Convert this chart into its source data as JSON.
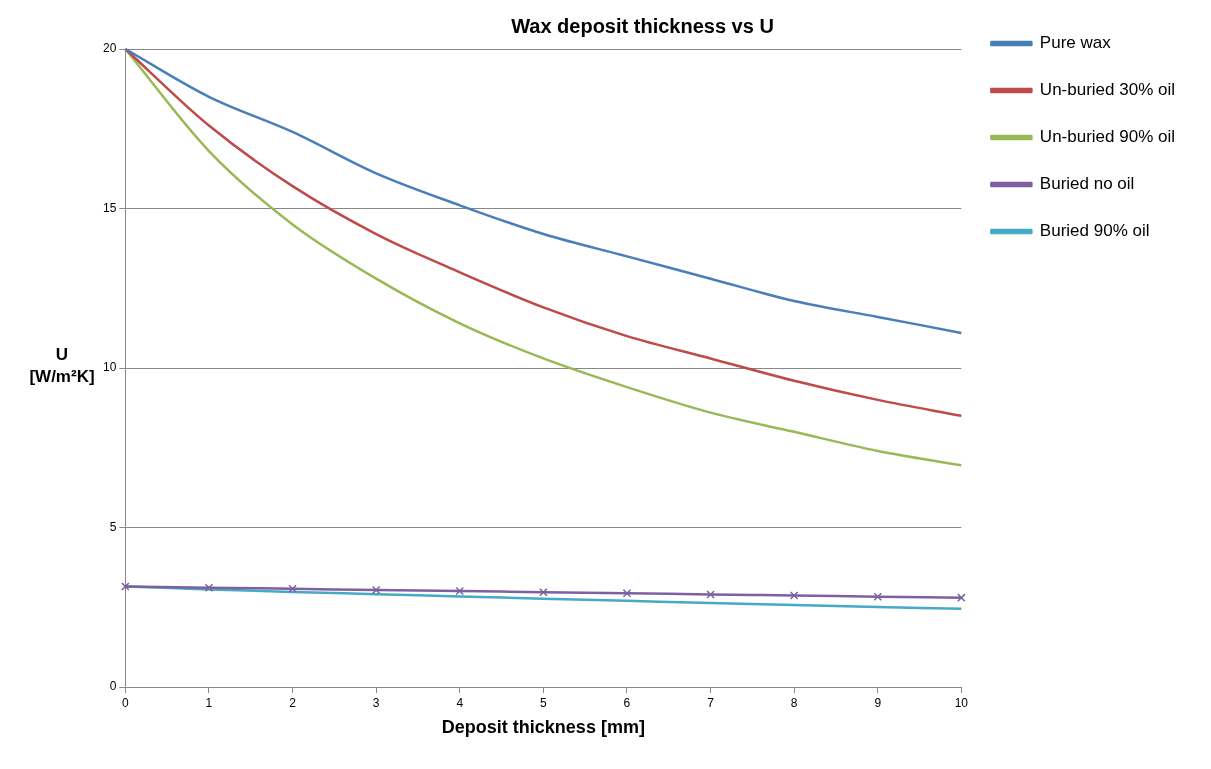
{
  "chart_data": {
    "type": "line",
    "title": "Wax deposit thickness vs U",
    "xlabel": "Deposit thickness [mm]",
    "ylabel": "U [W/m²K]",
    "x": [
      0,
      1,
      2,
      3,
      4,
      5,
      6,
      7,
      8,
      9,
      10
    ],
    "series": [
      {
        "name": "Pure wax",
        "color": "#4a7ebb",
        "marker": "none",
        "values": [
          20,
          18.5,
          17.4,
          16.1,
          15.1,
          14.2,
          13.5,
          12.8,
          12.1,
          11.6,
          11.1
        ]
      },
      {
        "name": "Un-buried 30% oil",
        "color": "#be4b48",
        "marker": "none",
        "values": [
          20,
          17.6,
          15.7,
          14.2,
          13.0,
          11.9,
          11.0,
          10.3,
          9.6,
          9.0,
          8.5
        ]
      },
      {
        "name": "Un-buried 90% oil",
        "color": "#98b954",
        "marker": "none",
        "values": [
          20,
          16.8,
          14.5,
          12.8,
          11.4,
          10.3,
          9.4,
          8.6,
          8.0,
          7.4,
          6.95
        ]
      },
      {
        "name": "Buried no oil",
        "color": "#7d60a0",
        "marker": "cross",
        "values": [
          3.15,
          3.11,
          3.08,
          3.04,
          3.01,
          2.97,
          2.94,
          2.9,
          2.87,
          2.83,
          2.8
        ]
      },
      {
        "name": "Buried 90% oil",
        "color": "#46aac5",
        "marker": "none",
        "values": [
          3.15,
          3.06,
          2.98,
          2.91,
          2.84,
          2.77,
          2.7,
          2.63,
          2.57,
          2.51,
          2.45
        ]
      }
    ],
    "xlim": [
      0,
      10
    ],
    "xticks": [
      0,
      1,
      2,
      3,
      4,
      5,
      6,
      7,
      8,
      9,
      10
    ],
    "ylim": [
      0,
      20
    ],
    "yticks": [
      0,
      5,
      10,
      15,
      20
    ],
    "grid": "y",
    "legend": "top right"
  }
}
